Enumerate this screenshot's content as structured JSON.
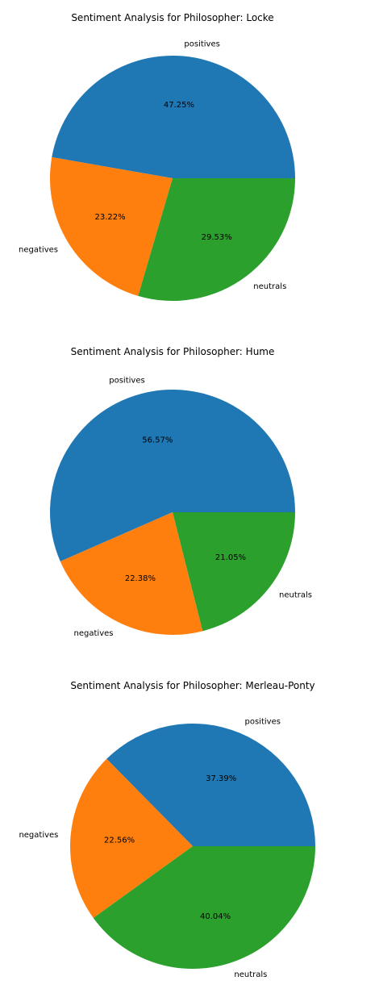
{
  "chart_data": [
    {
      "type": "pie",
      "title": "Sentiment Analysis for  Philosopher: Locke",
      "categories": [
        "positives",
        "negatives",
        "neutrals"
      ],
      "values": [
        47.25,
        23.22,
        29.53
      ],
      "colors": [
        "#1f77b4",
        "#ff7f0e",
        "#2ca02c"
      ]
    },
    {
      "type": "pie",
      "title": "Sentiment Analysis for  Philosopher: Hume",
      "categories": [
        "positives",
        "negatives",
        "neutrals"
      ],
      "values": [
        56.57,
        22.38,
        21.05
      ],
      "colors": [
        "#1f77b4",
        "#ff7f0e",
        "#2ca02c"
      ]
    },
    {
      "type": "pie",
      "title": "Sentiment Analysis for  Philosopher: Merleau-Ponty",
      "categories": [
        "positives",
        "negatives",
        "neutrals"
      ],
      "values": [
        37.39,
        22.56,
        40.04
      ],
      "colors": [
        "#1f77b4",
        "#ff7f0e",
        "#2ca02c"
      ]
    }
  ]
}
